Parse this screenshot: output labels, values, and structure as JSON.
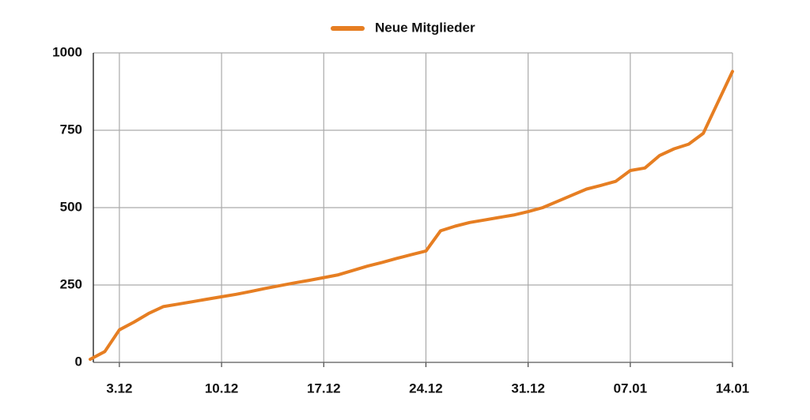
{
  "chart_data": {
    "type": "line",
    "categories": [
      null,
      null,
      "3.12",
      null,
      null,
      null,
      null,
      null,
      null,
      "10.12",
      null,
      null,
      null,
      null,
      null,
      null,
      "17.12",
      null,
      null,
      null,
      null,
      null,
      null,
      "24.12",
      null,
      null,
      null,
      null,
      null,
      null,
      "31.12",
      null,
      null,
      null,
      null,
      null,
      null,
      "07.01",
      null,
      null,
      null,
      null,
      null,
      null,
      "14.01"
    ],
    "series": [
      {
        "name": "Neue Mitglieder",
        "color": "#e67e22",
        "values": [
          10,
          35,
          105,
          130,
          158,
          180,
          188,
          196,
          204,
          212,
          220,
          229,
          239,
          248,
          257,
          265,
          274,
          283,
          297,
          311,
          323,
          336,
          348,
          360,
          425,
          440,
          452,
          460,
          468,
          476,
          487,
          500,
          520,
          540,
          560,
          572,
          585,
          620,
          628,
          668,
          690,
          705,
          740,
          840,
          940
        ]
      }
    ],
    "ylim": [
      0,
      1000
    ],
    "yticks": [
      0,
      250,
      500,
      750,
      1000
    ],
    "grid": true,
    "legend": "top"
  }
}
